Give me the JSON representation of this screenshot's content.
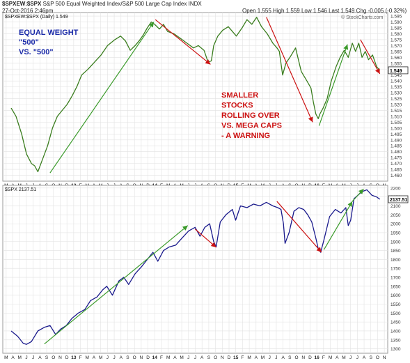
{
  "header": {
    "symbol": "$SPXEW:$SPX",
    "description": "S&P 500 Equal Weighted Index/S&P 500 Large Cap Index",
    "exchange": "INDX",
    "date": "27-Oct-2016 2:46pm",
    "quote": "Open 1.555  High 1.559  Low 1.546  Last 1.549  Chg -0.005 (-0.32%)",
    "watermark": "© StockCharts.com"
  },
  "chart_data": [
    {
      "type": "line",
      "legend": "$SPXEW:$SPX (Daily) 1.549",
      "last_value": "1.549",
      "y_ticks": [
        "1.595",
        "1.590",
        "1.585",
        "1.580",
        "1.575",
        "1.570",
        "1.565",
        "1.560",
        "1.555",
        "1.550",
        "1.545",
        "1.540",
        "1.535",
        "1.530",
        "1.525",
        "1.520",
        "1.515",
        "1.510",
        "1.505",
        "1.500",
        "1.495",
        "1.490",
        "1.485",
        "1.480",
        "1.475",
        "1.470",
        "1.465",
        "1.460"
      ],
      "ylim": [
        1.455,
        1.598
      ],
      "line_color": "#3a7d1e",
      "annotations": {
        "title_left": [
          "EQUAL WEIGHT",
          "\"500\"",
          "VS. \"500\""
        ],
        "warning": [
          "SMALLER",
          "STOCKS",
          "ROLLING OVER",
          "VS. MEGA CAPS",
          "- A WARNING"
        ]
      },
      "series": [
        {
          "x": [
            2012.27,
            2012.33,
            2012.4,
            2012.46,
            2012.52,
            2012.56,
            2012.6,
            2012.66,
            2012.72,
            2012.78,
            2012.84,
            2012.9,
            2012.96,
            2013.02,
            2013.08,
            2013.14,
            2013.22,
            2013.3,
            2013.38,
            2013.46,
            2013.55,
            2013.62,
            2013.68,
            2013.74,
            2013.8,
            2013.85,
            2013.9,
            2013.95,
            2014.0,
            2014.04,
            2014.1,
            2014.15,
            2014.2,
            2014.28,
            2014.36,
            2014.44,
            2014.52,
            2014.58,
            2014.65,
            2014.7,
            2014.74,
            2014.77,
            2014.82,
            2014.88,
            2014.95,
            2015.05,
            2015.12,
            2015.18,
            2015.24,
            2015.3,
            2015.36,
            2015.43,
            2015.5,
            2015.55,
            2015.58,
            2015.62,
            2015.66,
            2015.71,
            2015.78,
            2015.85,
            2015.92,
            2015.97,
            2016.0,
            2016.03,
            2016.06,
            2016.08,
            2016.12,
            2016.17,
            2016.22,
            2016.28,
            2016.33,
            2016.38,
            2016.43,
            2016.48,
            2016.52,
            2016.56,
            2016.6,
            2016.64,
            2016.68,
            2016.73,
            2016.78,
            2016.82
          ],
          "y": [
            1.517,
            1.51,
            1.495,
            1.478,
            1.47,
            1.468,
            1.463,
            1.474,
            1.485,
            1.5,
            1.51,
            1.515,
            1.52,
            1.527,
            1.535,
            1.545,
            1.55,
            1.556,
            1.562,
            1.57,
            1.575,
            1.578,
            1.574,
            1.566,
            1.57,
            1.574,
            1.579,
            1.585,
            1.59,
            1.588,
            1.584,
            1.588,
            1.582,
            1.58,
            1.576,
            1.572,
            1.568,
            1.57,
            1.566,
            1.556,
            1.557,
            1.57,
            1.578,
            1.583,
            1.586,
            1.578,
            1.585,
            1.592,
            1.588,
            1.594,
            1.586,
            1.58,
            1.572,
            1.568,
            1.565,
            1.545,
            1.555,
            1.56,
            1.568,
            1.548,
            1.54,
            1.534,
            1.522,
            1.512,
            1.508,
            1.512,
            1.517,
            1.525,
            1.54,
            1.552,
            1.56,
            1.566,
            1.56,
            1.572,
            1.565,
            1.572,
            1.56,
            1.565,
            1.558,
            1.562,
            1.552,
            1.549
          ]
        }
      ],
      "trend_arrows": [
        {
          "color": "green",
          "from": [
            2012.75,
            1.462
          ],
          "to": [
            2014.03,
            1.59
          ]
        },
        {
          "color": "red",
          "from": [
            2014.05,
            1.592
          ],
          "to": [
            2014.73,
            1.554
          ]
        },
        {
          "color": "red",
          "from": [
            2015.42,
            1.594
          ],
          "to": [
            2015.99,
            1.505
          ]
        },
        {
          "color": "green",
          "from": [
            2016.07,
            1.502
          ],
          "to": [
            2016.42,
            1.571
          ]
        },
        {
          "color": "red",
          "from": [
            2016.58,
            1.575
          ],
          "to": [
            2016.82,
            1.546
          ]
        }
      ]
    },
    {
      "type": "line",
      "legend": "$SPX 2137.51",
      "last_value": "2137.51",
      "y_ticks": [
        "2200",
        "2150",
        "2100",
        "2050",
        "2000",
        "1950",
        "1900",
        "1850",
        "1800",
        "1750",
        "1700",
        "1650",
        "1600",
        "1550",
        "1500",
        "1450",
        "1400",
        "1350",
        "1300"
      ],
      "ylim": [
        1275,
        2215
      ],
      "line_color": "#1a1a8c",
      "series": [
        {
          "x": [
            2012.27,
            2012.35,
            2012.42,
            2012.46,
            2012.52,
            2012.6,
            2012.68,
            2012.75,
            2012.82,
            2012.88,
            2012.95,
            2013.02,
            2013.1,
            2013.18,
            2013.25,
            2013.33,
            2013.4,
            2013.45,
            2013.52,
            2013.6,
            2013.66,
            2013.72,
            2013.8,
            2013.88,
            2013.95,
            2014.02,
            2014.08,
            2014.15,
            2014.22,
            2014.3,
            2014.38,
            2014.46,
            2014.54,
            2014.6,
            2014.66,
            2014.72,
            2014.77,
            2014.8,
            2014.85,
            2014.92,
            2015.0,
            2015.04,
            2015.1,
            2015.18,
            2015.26,
            2015.34,
            2015.42,
            2015.5,
            2015.56,
            2015.6,
            2015.63,
            2015.65,
            2015.7,
            2015.76,
            2015.82,
            2015.88,
            2015.93,
            2015.98,
            2016.03,
            2016.06,
            2016.09,
            2016.13,
            2016.2,
            2016.27,
            2016.34,
            2016.4,
            2016.43,
            2016.46,
            2016.5,
            2016.55,
            2016.6,
            2016.66,
            2016.72,
            2016.78,
            2016.82
          ],
          "y": [
            1400,
            1370,
            1330,
            1325,
            1340,
            1400,
            1420,
            1430,
            1380,
            1410,
            1430,
            1470,
            1500,
            1520,
            1570,
            1590,
            1630,
            1650,
            1600,
            1680,
            1700,
            1660,
            1720,
            1760,
            1800,
            1840,
            1790,
            1850,
            1870,
            1880,
            1920,
            1960,
            1980,
            1930,
            1980,
            2000,
            1900,
            1870,
            2010,
            2050,
            2080,
            2020,
            2100,
            2090,
            2110,
            2100,
            2120,
            2100,
            2090,
            2080,
            2000,
            1890,
            1950,
            2070,
            2090,
            2080,
            2050,
            2010,
            1920,
            1860,
            1840,
            1910,
            2040,
            2080,
            2060,
            2090,
            1990,
            2020,
            2140,
            2160,
            2180,
            2190,
            2160,
            2150,
            2137
          ]
        }
      ],
      "trend_arrows": [
        {
          "color": "green",
          "from": [
            2012.68,
            1327
          ],
          "to": [
            2014.45,
            1990
          ]
        },
        {
          "color": "red",
          "from": [
            2014.54,
            1970
          ],
          "to": [
            2014.8,
            1868
          ]
        },
        {
          "color": "red",
          "from": [
            2015.55,
            2125
          ],
          "to": [
            2016.1,
            1840
          ]
        },
        {
          "color": "green",
          "from": [
            2016.13,
            1855
          ],
          "to": [
            2016.48,
            2125
          ]
        },
        {
          "color": "green",
          "from": [
            2016.48,
            2125
          ],
          "to": [
            2016.62,
            2195
          ]
        }
      ]
    }
  ],
  "x_axis": {
    "labels": [
      "M",
      "A",
      "M",
      "J",
      "J",
      "A",
      "S",
      "O",
      "N",
      "D",
      "13",
      "F",
      "M",
      "A",
      "M",
      "J",
      "J",
      "A",
      "S",
      "O",
      "N",
      "D",
      "14",
      "F",
      "M",
      "A",
      "M",
      "J",
      "J",
      "A",
      "S",
      "O",
      "N",
      "D",
      "15",
      "F",
      "M",
      "A",
      "M",
      "J",
      "J",
      "A",
      "S",
      "O",
      "N",
      "D",
      "16",
      "F",
      "M",
      "A",
      "M",
      "J",
      "J",
      "A",
      "S",
      "O",
      "N"
    ],
    "start_year": 2012.167
  }
}
